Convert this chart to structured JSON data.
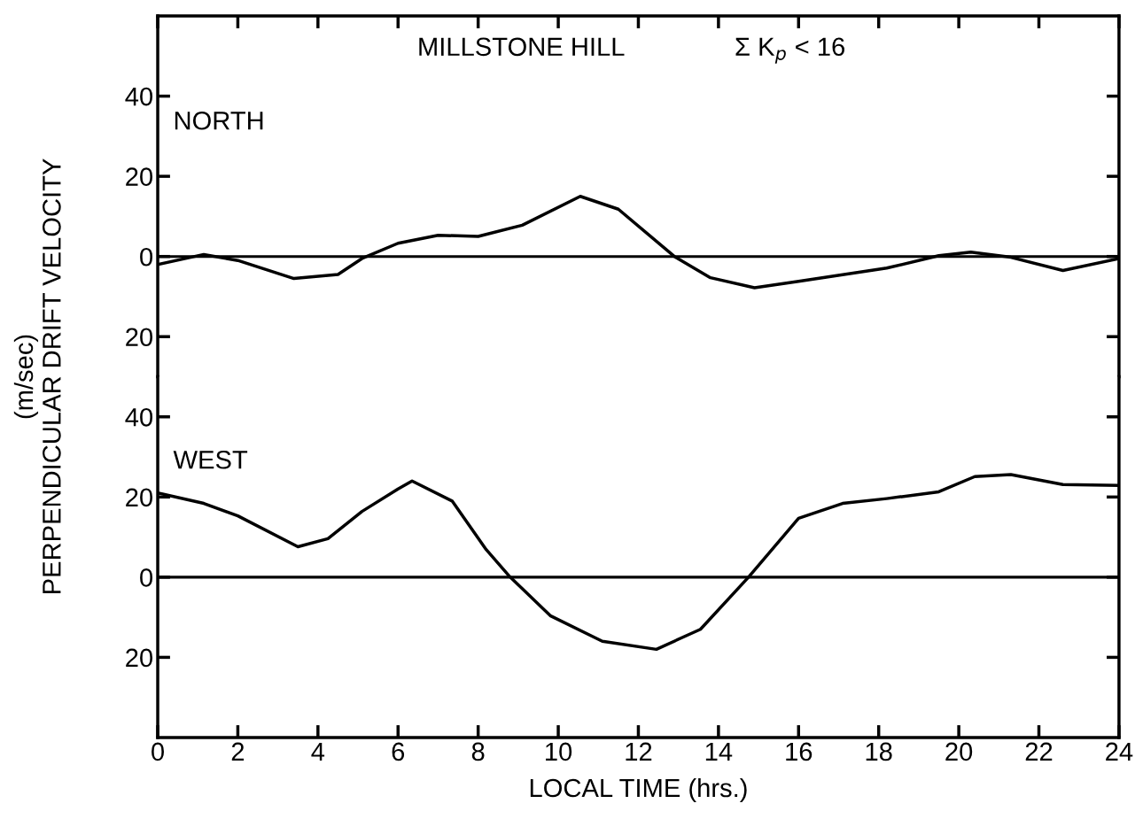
{
  "chart_data": [
    {
      "type": "line",
      "title": "MILLSTONE HILL",
      "annotations": [
        "Σ K$_{p}$ < 16"
      ],
      "ylabel": "(m/sec)\nPERPENDICULAR DRIFT VELOCITY",
      "x": [
        0,
        1.15,
        2,
        3.4,
        4.5,
        5.1,
        6,
        7,
        8,
        9.1,
        10.55,
        11.5,
        12.9,
        13.8,
        14.9,
        16,
        18.2,
        19.5,
        20.3,
        21.3,
        22.6,
        24
      ],
      "series": [
        {
          "name": "NORTH",
          "color": "#000000",
          "values": [
            -2,
            0.5,
            -1,
            -5.5,
            -4.5,
            -0.5,
            3.3,
            5.3,
            5,
            7.8,
            15,
            11.8,
            0,
            -5.3,
            -7.8,
            -6.2,
            -2.9,
            0.2,
            1.1,
            -0.2,
            -3.5,
            -0.5
          ]
        }
      ],
      "xlim": [
        0,
        24
      ],
      "xticks": [
        0,
        2,
        4,
        6,
        8,
        10,
        12,
        14,
        16,
        18,
        20,
        22,
        24
      ],
      "ylim": [
        -30,
        60
      ],
      "yticks": [
        {
          "value": -20,
          "label": "20"
        },
        0,
        20,
        40
      ],
      "tick_labels": "y",
      "grid": false,
      "legend": "top left",
      "marker": "none",
      "line_style": "solid",
      "ref_lines": [
        {
          "axis": "y",
          "value": 0,
          "label": null
        }
      ]
    },
    {
      "type": "line",
      "xlabel": "LOCAL TIME (hrs.)",
      "x": [
        0,
        1.15,
        2,
        3.5,
        4.25,
        5.1,
        6,
        6.35,
        7.35,
        8.2,
        8.8,
        9.8,
        11.1,
        12.45,
        13.55,
        14.75,
        16,
        17.1,
        18.2,
        19.5,
        20.4,
        21.3,
        22.6,
        24
      ],
      "series": [
        {
          "name": "WEST",
          "color": "#000000",
          "values": [
            21,
            18.4,
            15.3,
            7.6,
            9.6,
            16.4,
            22,
            24,
            19,
            6.9,
            0,
            -9.6,
            -16,
            -18,
            -13,
            0,
            14.7,
            18.4,
            19.6,
            21.3,
            25.1,
            25.6,
            23.1,
            22.9
          ]
        }
      ],
      "xlim": [
        0,
        24
      ],
      "xticks": [
        0,
        2,
        4,
        6,
        8,
        10,
        12,
        14,
        16,
        18,
        20,
        22,
        24
      ],
      "ylim": [
        -40,
        50
      ],
      "yticks": [
        {
          "value": -20,
          "label": "20"
        },
        0,
        20,
        40
      ],
      "grid": false,
      "legend": "top left",
      "marker": "none",
      "line_style": "solid",
      "ref_lines": [
        {
          "axis": "y",
          "value": 0,
          "label": null
        }
      ]
    }
  ]
}
